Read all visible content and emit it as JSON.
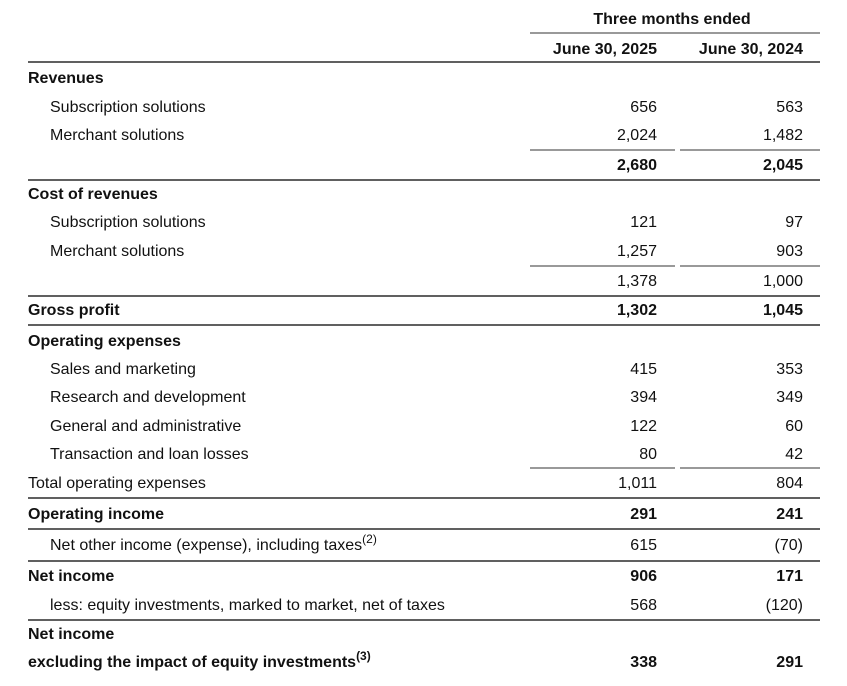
{
  "table": {
    "header": {
      "group": "Three months ended",
      "columns": [
        "June 30, 2025",
        "June 30, 2024"
      ]
    },
    "rows": [
      {
        "label": "Revenues"
      },
      {
        "label": "Subscription solutions",
        "values": [
          "656",
          "563"
        ]
      },
      {
        "label": "Merchant solutions",
        "values": [
          "2,024",
          "1,482"
        ]
      },
      {
        "values": [
          "2,680",
          "2,045"
        ]
      },
      {
        "label": "Cost of revenues"
      },
      {
        "label": "Subscription solutions",
        "values": [
          "121",
          "97"
        ]
      },
      {
        "label": "Merchant solutions",
        "values": [
          "1,257",
          "903"
        ]
      },
      {
        "values": [
          "1,378",
          "1,000"
        ]
      },
      {
        "label": "Gross profit",
        "values": [
          "1,302",
          "1,045"
        ]
      },
      {
        "label": "Operating expenses"
      },
      {
        "label": "Sales and marketing",
        "values": [
          "415",
          "353"
        ]
      },
      {
        "label": "Research and development",
        "values": [
          "394",
          "349"
        ]
      },
      {
        "label": "General and administrative",
        "values": [
          "122",
          "60"
        ]
      },
      {
        "label": "Transaction and loan losses",
        "values": [
          "80",
          "42"
        ]
      },
      {
        "label": "Total operating expenses",
        "values": [
          "1,011",
          "804"
        ]
      },
      {
        "label": "Operating income",
        "values": [
          "291",
          "241"
        ]
      },
      {
        "label": "Net other income (expense), including taxes",
        "note": "(2)",
        "values": [
          "615",
          "(70)"
        ]
      },
      {
        "label": "Net income",
        "values": [
          "906",
          "171"
        ]
      },
      {
        "label": "less: equity investments, marked to market, net of taxes",
        "values": [
          "568",
          "(120)"
        ]
      },
      {
        "label": "Net income"
      },
      {
        "label": "excluding the impact of equity investments",
        "note": "(3)",
        "values": [
          "338",
          "291"
        ]
      }
    ]
  }
}
